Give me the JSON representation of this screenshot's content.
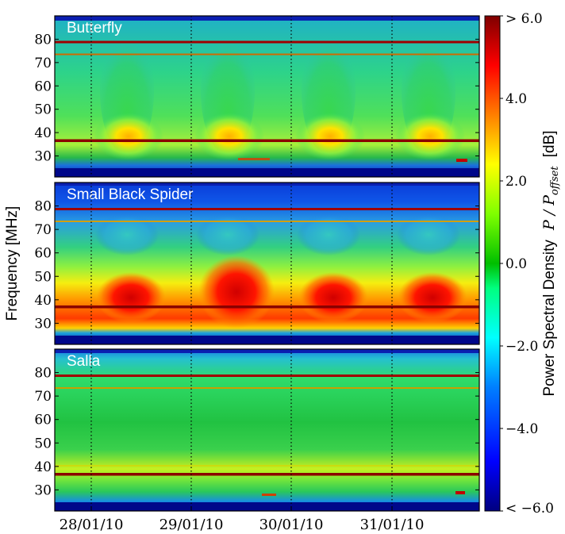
{
  "chart_data": {
    "type": "heatmap",
    "ylabel": "Frequency [MHz]",
    "x_ticks": [
      "28/01/10",
      "29/01/10",
      "30/01/10",
      "31/01/10"
    ],
    "y_ticks": [
      "30",
      "40",
      "50",
      "60",
      "70",
      "80"
    ],
    "y_range": [
      21,
      90
    ],
    "colorbar": {
      "label_main": "Power Spectral Density",
      "label_math": "P / P",
      "label_sub": "offset",
      "label_unit": "[dB]",
      "range": [
        -6.0,
        6.0
      ],
      "tick_labels": [
        {
          "value": 6.0,
          "text": "> 6.0"
        },
        {
          "value": 4.0,
          "text": "4.0"
        },
        {
          "value": 2.0,
          "text": "2.0"
        },
        {
          "value": 0.0,
          "text": "0.0"
        },
        {
          "value": -2.0,
          "text": "−2.0"
        },
        {
          "value": -4.0,
          "text": "−4.0"
        },
        {
          "value": -6.0,
          "text": "< −6.0"
        }
      ],
      "colors": [
        "#00007f",
        "#0000ff",
        "#007fff",
        "#00ffff",
        "#00ff7f",
        "#00bf00",
        "#7fff00",
        "#ffff00",
        "#ff7f00",
        "#ff0000",
        "#7f0000"
      ]
    },
    "panels": [
      {
        "name": "Butterfly"
      },
      {
        "name": "Small Black Spider"
      },
      {
        "name": "Salla"
      }
    ]
  }
}
